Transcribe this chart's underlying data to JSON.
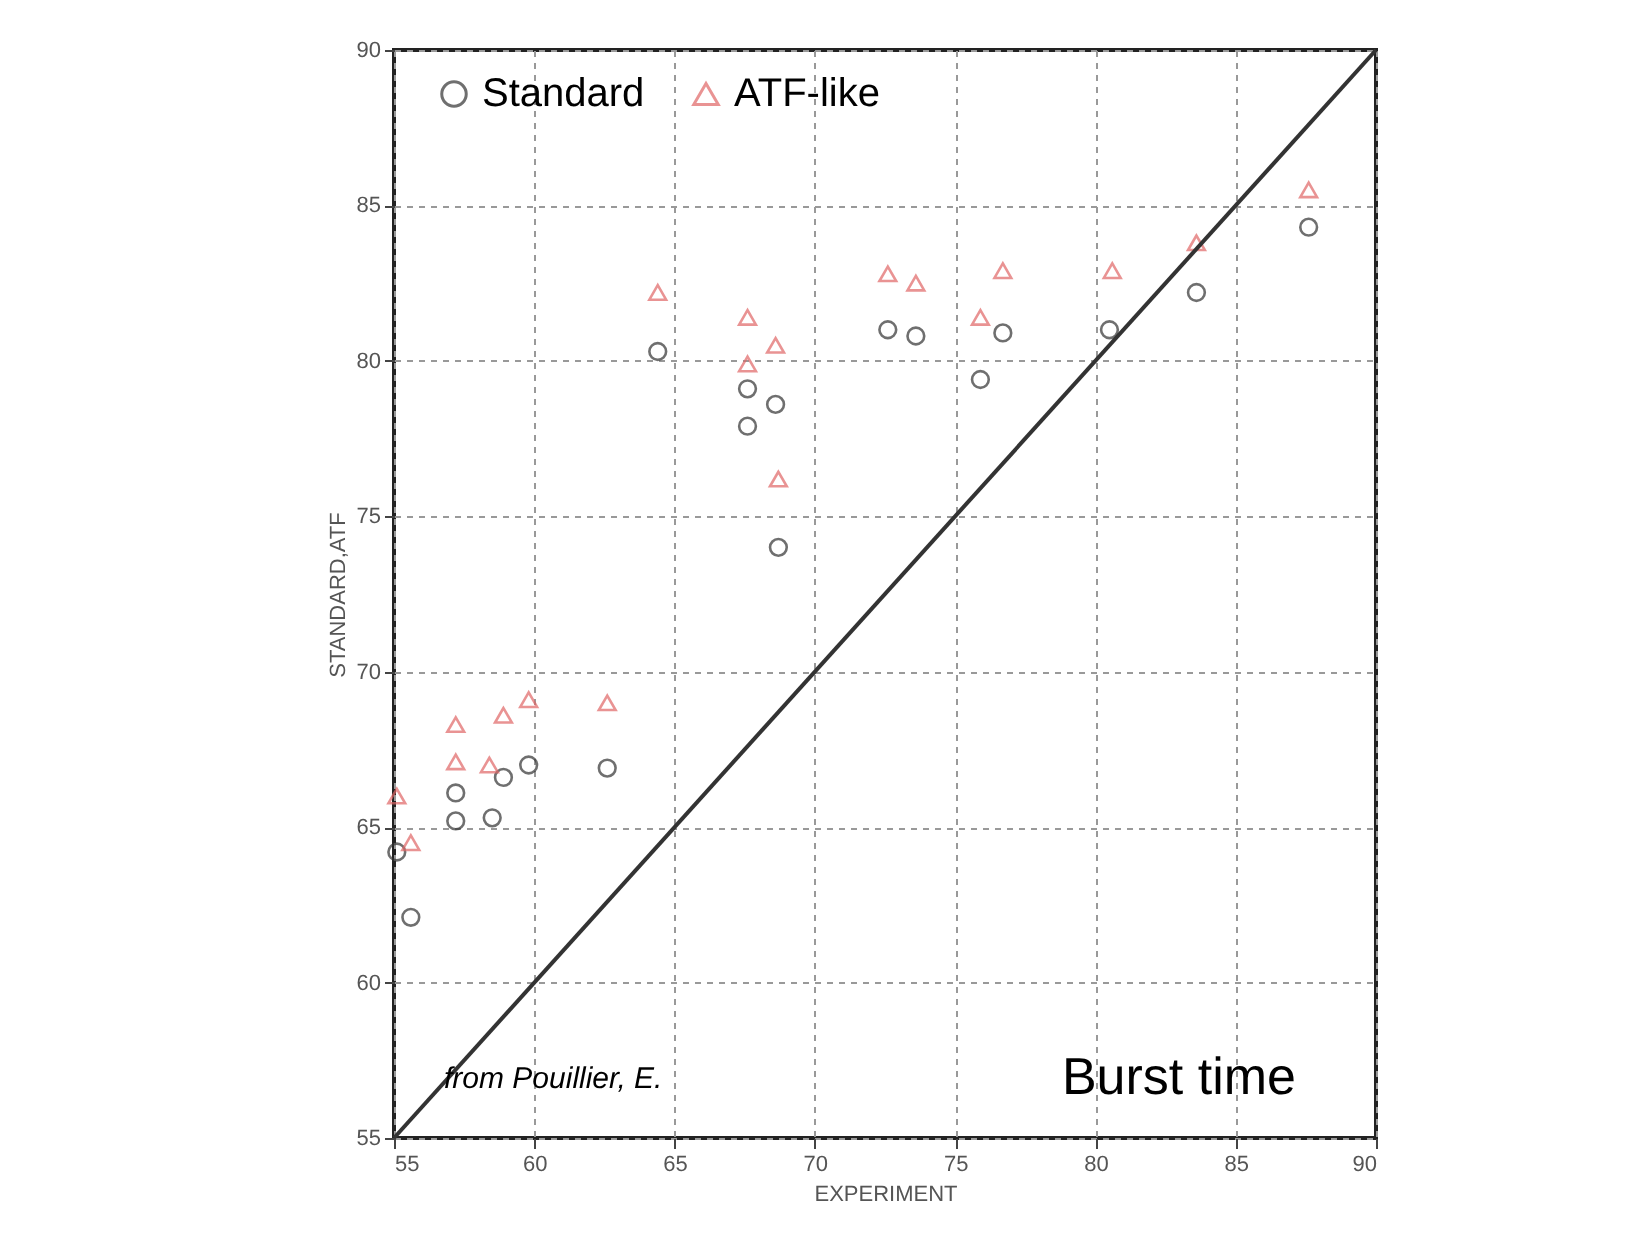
{
  "chart_data": {
    "type": "scatter",
    "xlabel": "EXPERIMENT",
    "ylabel": "STANDARD,ATF",
    "annotations": [
      "from Pouillier, E.",
      "Burst time"
    ],
    "xlim": [
      55,
      90
    ],
    "xticks": [
      55,
      60,
      65,
      70,
      75,
      80,
      85,
      90
    ],
    "ylim": [
      55,
      90
    ],
    "yticks": [
      55,
      60,
      65,
      70,
      75,
      80,
      85,
      90
    ],
    "grid": true,
    "legend": "top left",
    "series": [
      {
        "name": "Standard",
        "color": "#333333",
        "marker": "circle",
        "x": [
          55.1,
          55.6,
          57.2,
          57.2,
          58.5,
          58.9,
          59.8,
          62.6,
          64.4,
          67.6,
          67.6,
          68.6,
          68.7,
          72.6,
          73.6,
          75.9,
          76.7,
          80.5,
          83.6,
          87.6
        ],
        "values": [
          64.2,
          62.1,
          66.1,
          65.2,
          65.3,
          66.6,
          67.0,
          66.9,
          80.3,
          79.1,
          77.9,
          78.6,
          74.0,
          81.0,
          80.8,
          79.4,
          80.9,
          81.0,
          82.2,
          84.3
        ]
      },
      {
        "name": "ATF-like",
        "color": "#e06666",
        "marker": "triangle",
        "x": [
          55.1,
          55.6,
          57.2,
          57.2,
          58.4,
          58.9,
          59.8,
          62.6,
          64.4,
          67.6,
          67.6,
          68.6,
          68.7,
          72.6,
          73.6,
          75.9,
          76.7,
          80.6,
          83.6,
          87.6
        ],
        "values": [
          66.0,
          64.5,
          68.3,
          67.1,
          67.0,
          68.6,
          69.1,
          69.0,
          82.2,
          81.4,
          79.9,
          80.5,
          76.2,
          82.8,
          82.5,
          81.4,
          82.9,
          82.9,
          83.8,
          85.5
        ]
      },
      {
        "type": "line",
        "color": "#333333",
        "x": [
          55,
          90
        ],
        "values": [
          55,
          90
        ]
      }
    ]
  }
}
